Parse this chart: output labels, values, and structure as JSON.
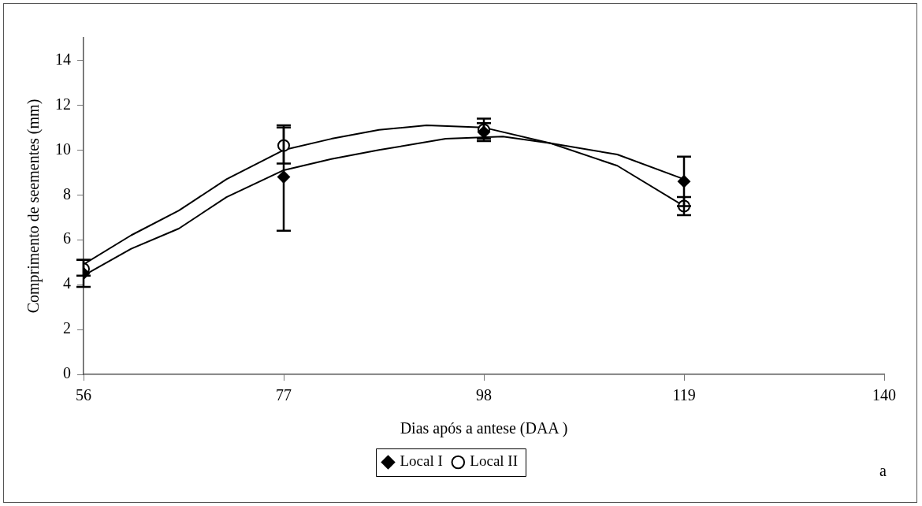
{
  "chart_data": {
    "type": "scatter",
    "xlabel": "Dias após a antese (DAA )",
    "ylabel": "Comprimento de seementes (mm)",
    "x": [
      56,
      77,
      98,
      119
    ],
    "series": [
      {
        "name": "Local I",
        "color": "#000000",
        "marker": "diamond",
        "values": [
          4.5,
          8.8,
          10.8,
          8.6
        ],
        "errors": [
          [
            3.9,
            5.1
          ],
          [
            6.4,
            11.0
          ],
          [
            10.4,
            11.4
          ],
          [
            7.5,
            9.7
          ]
        ]
      },
      {
        "name": "Local II",
        "color": "#000000",
        "marker": "circle",
        "values": [
          4.7,
          10.2,
          10.9,
          7.5
        ],
        "errors": [
          [
            4.4,
            5.1
          ],
          [
            9.4,
            11.1
          ],
          [
            10.5,
            11.2
          ],
          [
            7.1,
            7.9
          ]
        ]
      },
      {
        "type": "line",
        "color": "#000000",
        "marker": "none",
        "x": [
          56,
          61,
          66,
          71,
          77,
          82,
          87,
          94,
          100,
          105,
          112,
          119
        ],
        "values": [
          4.4,
          5.6,
          6.5,
          7.9,
          9.1,
          9.6,
          10.0,
          10.5,
          10.6,
          10.3,
          9.8,
          8.7
        ]
      },
      {
        "type": "line",
        "color": "#000000",
        "marker": "none",
        "x": [
          56,
          61,
          66,
          71,
          77,
          82,
          87,
          92,
          98,
          105,
          112,
          119
        ],
        "values": [
          4.9,
          6.2,
          7.3,
          8.7,
          10.0,
          10.5,
          10.9,
          11.1,
          11.0,
          10.3,
          9.3,
          7.5
        ]
      }
    ],
    "xlim": [
      56,
      140
    ],
    "xticks": [
      56,
      77,
      98,
      119,
      140
    ],
    "ylim": [
      0,
      15
    ],
    "yticks": [
      0,
      2,
      4,
      6,
      8,
      10,
      12,
      14
    ],
    "grid": false,
    "legend": "bottom",
    "annotations": [
      "a"
    ]
  }
}
